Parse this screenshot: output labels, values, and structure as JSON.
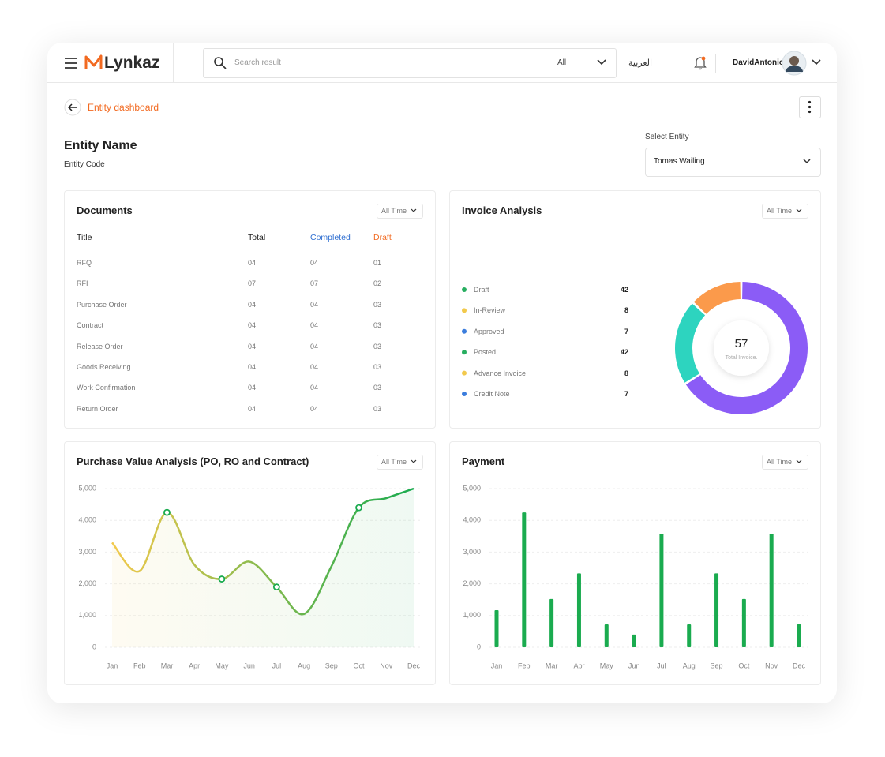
{
  "header": {
    "logo": "Lynkaz",
    "search_placeholder": "Search result",
    "search_filter": "All",
    "language": "العربية",
    "user": "DavidAntonio"
  },
  "breadcrumb": "Entity dashboard",
  "entity": {
    "name": "Entity Name",
    "code": "Entity Code",
    "select_label": "Select Entity",
    "selected": "Tomas Wailing"
  },
  "documents": {
    "title": "Documents",
    "filter": "All Time",
    "columns": [
      "Title",
      "Total",
      "Completed",
      "Draft"
    ],
    "rows": [
      [
        "RFQ",
        "04",
        "04",
        "01"
      ],
      [
        "RFI",
        "07",
        "07",
        "02"
      ],
      [
        "Purchase Order",
        "04",
        "04",
        "03"
      ],
      [
        "Contract",
        "04",
        "04",
        "03"
      ],
      [
        "Release Order",
        "04",
        "04",
        "03"
      ],
      [
        "Goods Receiving",
        "04",
        "04",
        "03"
      ],
      [
        "Work Confirmation",
        "04",
        "04",
        "03"
      ],
      [
        "Return Order",
        "04",
        "04",
        "03"
      ]
    ]
  },
  "chart_data": [
    {
      "type": "donut",
      "title": "Invoice Analysis",
      "filter": "All Time",
      "legend": [
        {
          "name": "Draft",
          "color": "#27ae60",
          "value": 42
        },
        {
          "name": "In-Review",
          "color": "#f2c94c",
          "value": 8
        },
        {
          "name": "Approved",
          "color": "#3b7ddd",
          "value": 7
        },
        {
          "name": "Posted",
          "color": "#27ae60",
          "value": 42
        },
        {
          "name": "Advance Invoice",
          "color": "#f2c94c",
          "value": 8
        },
        {
          "name": "Credit Note",
          "color": "#3b7ddd",
          "value": 7
        }
      ],
      "values": [
        66,
        21,
        13
      ],
      "colors": [
        "#8b5cf6",
        "#2dd4bf",
        "#fb9a4b"
      ],
      "center_value": 57,
      "center_label": "Total Invoice."
    },
    {
      "type": "line",
      "title": "Purchase Value Analysis (PO, RO and Contract)",
      "filter": "All Time",
      "categories": [
        "Jan",
        "Feb",
        "Mar",
        "Apr",
        "May",
        "Jun",
        "Jul",
        "Aug",
        "Sep",
        "Oct",
        "Nov",
        "Dec"
      ],
      "series": [
        {
          "values": [
            3300,
            2400,
            4250,
            2600,
            2150,
            2700,
            1900,
            1050,
            2550,
            4400,
            4700,
            5000
          ],
          "gradient": [
            "#f2c94c",
            "#1aab4f"
          ]
        }
      ],
      "markers": [
        2,
        4,
        6,
        9
      ],
      "ylim": [
        0,
        5000
      ],
      "yticks": [
        0,
        {
          "value": 1000,
          "label": "1,000"
        },
        {
          "value": 2000,
          "label": "2,000"
        },
        {
          "value": 3000,
          "label": "3,000"
        },
        {
          "value": 4000,
          "label": "4,000"
        },
        {
          "value": 5000,
          "label": "5,000"
        }
      ],
      "grid": true
    },
    {
      "type": "bar",
      "title": "Payment",
      "filter": "All Time",
      "categories": [
        "Jan",
        "Feb",
        "Mar",
        "Apr",
        "May",
        "Jun",
        "Jul",
        "Aug",
        "Sep",
        "Oct",
        "Nov",
        "Dec"
      ],
      "values": [
        1170,
        4250,
        1520,
        2330,
        720,
        400,
        3580,
        720,
        2330,
        1520,
        3580,
        720
      ],
      "color": "#1aab4f",
      "ylim": [
        0,
        5000
      ],
      "yticks": [
        0,
        {
          "value": 1000,
          "label": "1,000"
        },
        {
          "value": 2000,
          "label": "2,000"
        },
        {
          "value": 3000,
          "label": "3,000"
        },
        {
          "value": 4000,
          "label": "4,000"
        },
        {
          "value": 5000,
          "label": "5,000"
        }
      ],
      "grid": true
    }
  ]
}
